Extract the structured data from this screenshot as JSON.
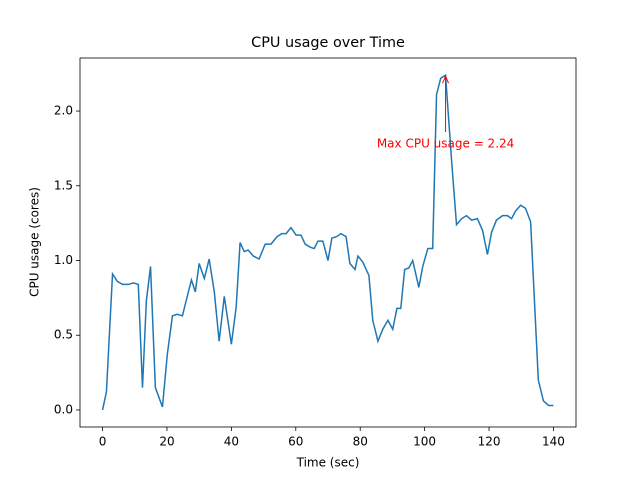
{
  "chart_data": {
    "type": "line",
    "title": "CPU usage over Time",
    "xlabel": "Time (sec)",
    "ylabel": "CPU usage (cores)",
    "x": [
      0,
      1.2,
      3.1,
      4.6,
      6.2,
      8,
      9.6,
      11.1,
      12.4,
      13.6,
      14.9,
      16.4,
      18.6,
      20.1,
      21.7,
      23.2,
      24.8,
      26.3,
      27.6,
      28.8,
      30,
      31.6,
      33.1,
      34.7,
      36.2,
      37.8,
      40,
      41.5,
      42.7,
      44,
      45.2,
      46.8,
      48.6,
      50.5,
      52.3,
      54.2,
      55.7,
      57,
      58.5,
      60.1,
      61.6,
      62.9,
      64.4,
      65.7,
      66.9,
      68.4,
      70,
      71.2,
      72.7,
      74,
      75.6,
      76.8,
      78.4,
      79.3,
      80.8,
      82.7,
      83.9,
      85.5,
      87,
      88.6,
      90.1,
      91.4,
      92.6,
      93.8,
      95.1,
      96.3,
      98.2,
      99.4,
      101,
      102.5,
      103.7,
      105,
      106.5,
      108.4,
      109.9,
      111.5,
      113,
      114.6,
      116.4,
      118,
      119.5,
      120.8,
      122.3,
      124.2,
      125.7,
      127,
      128.2,
      129.8,
      131.3,
      132.9,
      135.3,
      136.9,
      138.5,
      140
    ],
    "series": [
      {
        "name": "CPU usage",
        "color": "#1f77b4",
        "values": [
          0,
          0.12,
          0.91,
          0.86,
          0.84,
          0.84,
          0.85,
          0.84,
          0.15,
          0.73,
          0.96,
          0.15,
          0.02,
          0.37,
          0.63,
          0.64,
          0.63,
          0.76,
          0.87,
          0.79,
          0.98,
          0.88,
          1.01,
          0.79,
          0.46,
          0.76,
          0.44,
          0.69,
          1.12,
          1.06,
          1.07,
          1.03,
          1.01,
          1.11,
          1.11,
          1.16,
          1.18,
          1.18,
          1.22,
          1.17,
          1.17,
          1.11,
          1.09,
          1.08,
          1.13,
          1.13,
          1.0,
          1.15,
          1.16,
          1.18,
          1.16,
          0.98,
          0.94,
          1.03,
          0.99,
          0.9,
          0.6,
          0.46,
          0.54,
          0.6,
          0.54,
          0.68,
          0.68,
          0.94,
          0.95,
          1.0,
          0.82,
          0.96,
          1.08,
          1.08,
          2.11,
          2.22,
          2.24,
          1.66,
          1.24,
          1.28,
          1.3,
          1.27,
          1.28,
          1.2,
          1.04,
          1.19,
          1.27,
          1.3,
          1.3,
          1.28,
          1.33,
          1.37,
          1.35,
          1.26,
          0.2,
          0.06,
          0.03,
          0.03
        ]
      }
    ],
    "xlim": [
      -7,
      147
    ],
    "ylim": [
      -0.114,
      2.355
    ],
    "xticks": [
      0,
      20,
      40,
      60,
      80,
      100,
      120,
      140
    ],
    "yticks": [
      {
        "value": 0,
        "label": "0.0"
      },
      {
        "value": 0.5,
        "label": "0.5"
      },
      {
        "value": 1,
        "label": "1.0"
      },
      {
        "value": 1.5,
        "label": "1.5"
      },
      {
        "value": 2,
        "label": "2.0"
      }
    ],
    "annotation": {
      "text": "Max CPU usage = 2.24",
      "color": "red",
      "xy": [
        106.5,
        2.24
      ],
      "xytext": [
        106.5,
        1.78
      ]
    }
  }
}
